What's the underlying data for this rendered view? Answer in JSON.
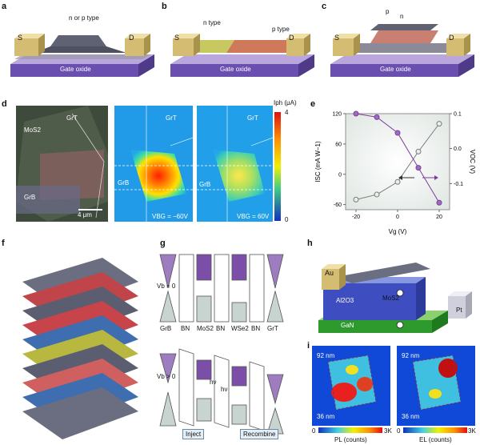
{
  "panels": {
    "a": {
      "letter": "a",
      "source": "S",
      "drain": "D",
      "gate": "Gate oxide",
      "type_label": "n or p type"
    },
    "b": {
      "letter": "b",
      "source": "S",
      "drain": "D",
      "gate": "Gate oxide",
      "n_label": "n type",
      "p_label": "p type"
    },
    "c": {
      "letter": "c",
      "source": "S",
      "drain": "D",
      "gate": "Gate oxide",
      "p": "p",
      "n": "n"
    },
    "d": {
      "letter": "d",
      "mos2": "MoS2",
      "grt": "GrT",
      "grb": "GrB",
      "scale": "4 μm",
      "map1_grt": "GrT",
      "map1_grb": "GrB",
      "map1_vbg": "VBG = −60V",
      "map2_grt": "GrT",
      "map2_grb": "GrB",
      "map2_vbg": "VBG = 60V",
      "cbar_title": "Iph (μA)",
      "cbar_max": "4",
      "cbar_min": "0"
    },
    "e": {
      "letter": "e"
    },
    "f": {
      "letter": "f"
    },
    "g": {
      "letter": "g",
      "v0": "Vb = 0",
      "vpos": "Vb > 0",
      "layers": [
        "GrB",
        "BN",
        "MoS2",
        "BN",
        "WSe2",
        "BN",
        "GrT"
      ],
      "hv1": "hν",
      "hv2": "hν",
      "inject": "Inject",
      "recombine": "Recombine"
    },
    "h": {
      "letter": "h",
      "au": "Au",
      "al2o3": "Al2O3",
      "mos2": "MoS2",
      "gan": "GaN",
      "pt": "Pt"
    },
    "i": {
      "letter": "i",
      "nm92a": "92 nm",
      "nm36a": "36 nm",
      "nm92b": "92 nm",
      "nm36b": "36 nm",
      "pl_label": "PL (counts)",
      "el_label": "EL (counts)",
      "pl_min": "0",
      "pl_max": "3K",
      "el_min": "0",
      "el_max": "3K"
    }
  },
  "chart_data": {
    "type": "line",
    "xlabel": "Vg (V)",
    "ylabel_left": "ISC (mA W−1)",
    "ylabel_right": "VOC (V)",
    "xlim": [
      -25,
      25
    ],
    "ylim_left": [
      -70,
      120
    ],
    "ylim_right": [
      -0.175,
      0.1
    ],
    "x_ticks": [
      -20,
      0,
      20
    ],
    "y_left_ticks": [
      -60,
      0,
      60,
      120
    ],
    "y_right_ticks": [
      -0.1,
      0.0,
      0.1
    ],
    "series": [
      {
        "axis": "left",
        "color": "#7a7a7a",
        "x": [
          -20,
          -10,
          0,
          10,
          20
        ],
        "values": [
          -50,
          -40,
          -15,
          45,
          100
        ]
      },
      {
        "axis": "right",
        "color": "#7b3f98",
        "x": [
          -20,
          -10,
          0,
          10,
          20
        ],
        "values": [
          0.1,
          0.09,
          0.045,
          -0.055,
          -0.155
        ]
      }
    ]
  }
}
